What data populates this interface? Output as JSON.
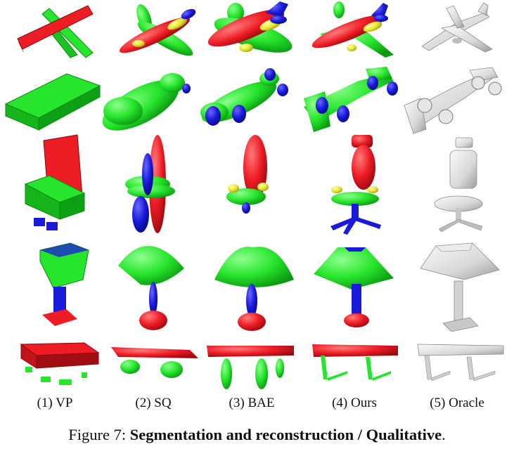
{
  "figure": {
    "column_labels": [
      "(1) VP",
      "(2) SQ",
      "(3) BAE",
      "(4) Ours",
      "(5) Oracle"
    ],
    "rows": [
      "airplane",
      "race-car",
      "office-chair",
      "table-lamp",
      "table"
    ],
    "part_colors": {
      "red": "#ee1c25",
      "green": "#27e52c",
      "blue": "#1a1adb",
      "yellow": "#e8e835",
      "oracle": "#d8d8d8"
    }
  },
  "caption": {
    "prefix": "Figure 7: ",
    "bold": "Segmentation and reconstruction / Qualitative",
    "suffix": "."
  }
}
